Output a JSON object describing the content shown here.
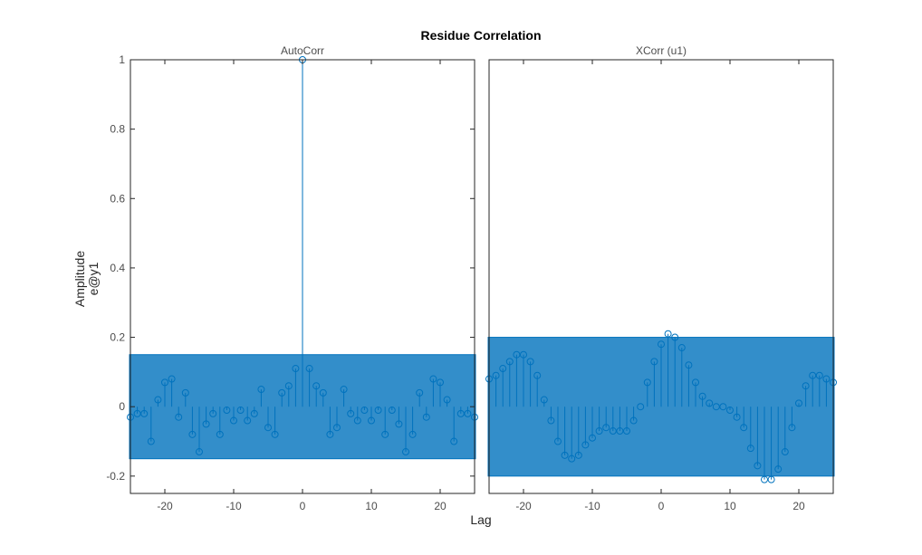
{
  "chart_data": {
    "type": "stem",
    "title": "Residue Correlation",
    "ylabel": "Amplitude",
    "ylabel2": "e@y1",
    "xlabel": "Lag",
    "colors": {
      "stem": "#0072bd",
      "band_fill": "#0072bd",
      "axes": "#262626"
    },
    "panels": [
      {
        "name": "AutoCorr",
        "xlim": [
          -25,
          25
        ],
        "ylim": [
          -0.25,
          1.0
        ],
        "xticks": [
          -20,
          -10,
          0,
          10,
          20
        ],
        "yticks": [
          -0.2,
          0,
          0.2,
          0.4,
          0.6,
          0.8,
          1
        ],
        "ytick_labels": [
          "-0.2",
          "0",
          "0.2",
          "0.4",
          "0.6",
          "0.8",
          "1"
        ],
        "confidence_band": [
          -0.15,
          0.15
        ],
        "x": [
          -25,
          -24,
          -23,
          -22,
          -21,
          -20,
          -19,
          -18,
          -17,
          -16,
          -15,
          -14,
          -13,
          -12,
          -11,
          -10,
          -9,
          -8,
          -7,
          -6,
          -5,
          -4,
          -3,
          -2,
          -1,
          0,
          1,
          2,
          3,
          4,
          5,
          6,
          7,
          8,
          9,
          10,
          11,
          12,
          13,
          14,
          15,
          16,
          17,
          18,
          19,
          20,
          21,
          22,
          23,
          24,
          25
        ],
        "values": [
          -0.03,
          -0.02,
          -0.02,
          -0.1,
          0.02,
          0.07,
          0.08,
          -0.03,
          0.04,
          -0.08,
          -0.13,
          -0.05,
          -0.02,
          -0.08,
          -0.01,
          -0.04,
          -0.01,
          -0.04,
          -0.02,
          0.05,
          -0.06,
          -0.08,
          0.04,
          0.06,
          0.11,
          1.0,
          0.11,
          0.06,
          0.04,
          -0.08,
          -0.06,
          0.05,
          -0.02,
          -0.04,
          -0.01,
          -0.04,
          -0.01,
          -0.08,
          -0.01,
          -0.05,
          -0.13,
          -0.08,
          0.04,
          -0.03,
          0.08,
          0.07,
          0.02,
          -0.1,
          -0.02,
          -0.02,
          -0.03
        ]
      },
      {
        "name": "XCorr (u1)",
        "xlim": [
          -25,
          25
        ],
        "ylim": [
          -0.25,
          1.0
        ],
        "xticks": [
          -20,
          -10,
          0,
          10,
          20
        ],
        "yticks": [],
        "ytick_labels": [],
        "confidence_band": [
          -0.2,
          0.2
        ],
        "x": [
          -25,
          -24,
          -23,
          -22,
          -21,
          -20,
          -19,
          -18,
          -17,
          -16,
          -15,
          -14,
          -13,
          -12,
          -11,
          -10,
          -9,
          -8,
          -7,
          -6,
          -5,
          -4,
          -3,
          -2,
          -1,
          0,
          1,
          2,
          3,
          4,
          5,
          6,
          7,
          8,
          9,
          10,
          11,
          12,
          13,
          14,
          15,
          16,
          17,
          18,
          19,
          20,
          21,
          22,
          23,
          24,
          25
        ],
        "values": [
          0.08,
          0.09,
          0.11,
          0.13,
          0.15,
          0.15,
          0.13,
          0.09,
          0.02,
          -0.04,
          -0.1,
          -0.14,
          -0.15,
          -0.14,
          -0.11,
          -0.09,
          -0.07,
          -0.06,
          -0.07,
          -0.07,
          -0.07,
          -0.04,
          0.0,
          0.07,
          0.13,
          0.18,
          0.21,
          0.2,
          0.17,
          0.12,
          0.07,
          0.03,
          0.01,
          0.0,
          0.0,
          -0.01,
          -0.03,
          -0.06,
          -0.12,
          -0.17,
          -0.21,
          -0.21,
          -0.18,
          -0.13,
          -0.06,
          0.01,
          0.06,
          0.09,
          0.09,
          0.08,
          0.07
        ]
      }
    ]
  }
}
